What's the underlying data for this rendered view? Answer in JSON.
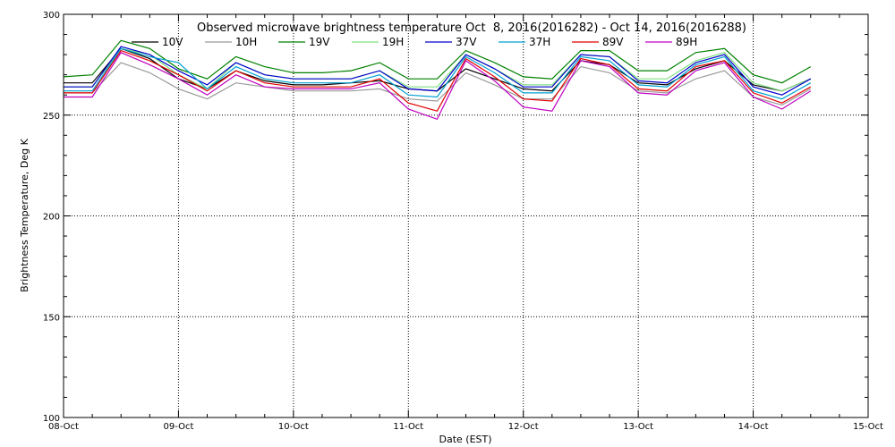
{
  "chart_data": {
    "type": "line",
    "title": "Observed microwave brightness temperature Oct  8, 2016(2016282) - Oct 14, 2016(2016288)",
    "xlabel": "Date (EST)",
    "ylabel": "Brightness Temperature, Deg K",
    "xlim": [
      "2016-10-08T00:00",
      "2016-10-15T00:00"
    ],
    "ylim": [
      100,
      300
    ],
    "x_ticks": [
      "08-Oct",
      "09-Oct",
      "10-Oct",
      "11-Oct",
      "12-Oct",
      "13-Oct",
      "14-Oct",
      "15-Oct"
    ],
    "y_ticks": [
      100,
      150,
      200,
      250,
      300
    ],
    "grid": "dotted",
    "legend_position": "top",
    "x": [
      "2016-10-08T00:00",
      "2016-10-08T06:00",
      "2016-10-08T12:00",
      "2016-10-08T18:00",
      "2016-10-09T00:00",
      "2016-10-09T06:00",
      "2016-10-09T12:00",
      "2016-10-09T18:00",
      "2016-10-10T00:00",
      "2016-10-10T06:00",
      "2016-10-10T12:00",
      "2016-10-10T18:00",
      "2016-10-11T00:00",
      "2016-10-11T06:00",
      "2016-10-11T12:00",
      "2016-10-11T18:00",
      "2016-10-12T00:00",
      "2016-10-12T06:00",
      "2016-10-12T12:00",
      "2016-10-12T18:00",
      "2016-10-13T00:00",
      "2016-10-13T06:00",
      "2016-10-13T12:00",
      "2016-10-13T18:00",
      "2016-10-14T00:00",
      "2016-10-14T06:00",
      "2016-10-14T12:00"
    ],
    "series": [
      {
        "name": "10V",
        "color": "#000000",
        "values": [
          266,
          266,
          283,
          278,
          268,
          263,
          272,
          267,
          265,
          265,
          266,
          267,
          263,
          262,
          273,
          268,
          263,
          262,
          277,
          275,
          266,
          265,
          273,
          277,
          265,
          262,
          268
        ]
      },
      {
        "name": "10H",
        "color": "#9a9a9a",
        "values": [
          261,
          261,
          276,
          271,
          263,
          258,
          266,
          264,
          262,
          262,
          262,
          263,
          258,
          257,
          271,
          265,
          258,
          258,
          274,
          271,
          262,
          261,
          268,
          272,
          259,
          255,
          263
        ]
      },
      {
        "name": "19V",
        "color": "#008000",
        "values": [
          269,
          270,
          287,
          283,
          273,
          268,
          279,
          274,
          271,
          271,
          272,
          276,
          268,
          268,
          282,
          276,
          269,
          268,
          282,
          282,
          272,
          272,
          281,
          283,
          270,
          266,
          274
        ]
      },
      {
        "name": "19H",
        "color": "#80e080",
        "values": [
          264,
          264,
          283,
          280,
          270,
          263,
          276,
          270,
          268,
          268,
          268,
          272,
          264,
          264,
          280,
          273,
          265,
          265,
          280,
          279,
          268,
          268,
          277,
          281,
          266,
          262,
          268
        ]
      },
      {
        "name": "37V",
        "color": "#0000cc",
        "values": [
          264,
          264,
          284,
          280,
          272,
          265,
          276,
          270,
          268,
          268,
          268,
          272,
          263,
          262,
          280,
          273,
          264,
          264,
          280,
          279,
          267,
          266,
          276,
          280,
          264,
          260,
          268
        ]
      },
      {
        "name": "37H",
        "color": "#00a0d0",
        "values": [
          262,
          262,
          283,
          279,
          276,
          263,
          274,
          268,
          266,
          266,
          266,
          270,
          260,
          259,
          279,
          271,
          261,
          261,
          279,
          277,
          265,
          264,
          275,
          279,
          262,
          258,
          266
        ]
      },
      {
        "name": "89V",
        "color": "#e00000",
        "values": [
          261,
          261,
          282,
          277,
          270,
          262,
          272,
          266,
          264,
          264,
          264,
          268,
          256,
          252,
          278,
          269,
          258,
          257,
          278,
          275,
          263,
          262,
          274,
          277,
          261,
          256,
          264
        ]
      },
      {
        "name": "89H",
        "color": "#c000c0",
        "values": [
          259,
          259,
          281,
          275,
          268,
          260,
          270,
          264,
          263,
          263,
          263,
          266,
          253,
          248,
          277,
          267,
          254,
          252,
          277,
          274,
          261,
          260,
          272,
          276,
          259,
          253,
          262
        ]
      }
    ]
  }
}
